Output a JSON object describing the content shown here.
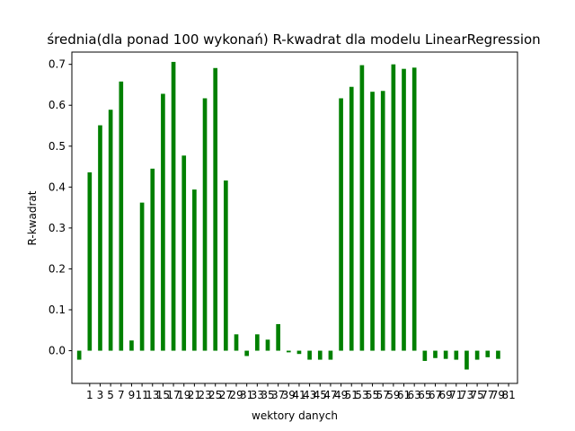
{
  "chart_data": {
    "type": "bar",
    "title": "średnia(dla ponad 100 wykonań) R-kwadrat dla modelu LinearRegression",
    "xlabel": "wektory danych",
    "ylabel": "R-kwadrat",
    "ylim": [
      -0.08,
      0.73
    ],
    "yticks": [
      0.0,
      0.1,
      0.2,
      0.3,
      0.4,
      0.5,
      0.6,
      0.7
    ],
    "ytick_labels": [
      "0.0",
      "0.1",
      "0.2",
      "0.3",
      "0.4",
      "0.5",
      "0.6",
      "0.7"
    ],
    "xlim": [
      -2.4,
      82.7
    ],
    "xticks": [
      1,
      3,
      5,
      7,
      9,
      11,
      13,
      15,
      17,
      19,
      21,
      23,
      25,
      27,
      29,
      31,
      33,
      35,
      37,
      39,
      41,
      43,
      45,
      47,
      49,
      51,
      53,
      55,
      57,
      59,
      61,
      63,
      65,
      67,
      69,
      71,
      73,
      75,
      77,
      79,
      81
    ],
    "xtick_labels": [
      "1",
      "3",
      "5",
      "7",
      "9",
      "11",
      "13",
      "15",
      "17",
      "19",
      "21",
      "23",
      "25",
      "27",
      "29",
      "31",
      "33",
      "35",
      "37",
      "39",
      "41",
      "43",
      "45",
      "47",
      "49",
      "51",
      "53",
      "55",
      "57",
      "59",
      "61",
      "63",
      "65",
      "67",
      "69",
      "71",
      "73",
      "75",
      "77",
      "79",
      "81"
    ],
    "bar_color": "#008000",
    "grid": false,
    "series": [
      {
        "x": [
          -1,
          1,
          3,
          5,
          7,
          9,
          11,
          13,
          15,
          17,
          19,
          21,
          23,
          25,
          27,
          29,
          31,
          33,
          35,
          37,
          39,
          41,
          43,
          45,
          47,
          49,
          51,
          53,
          55,
          57,
          59,
          61,
          63,
          65,
          67,
          69,
          71,
          73,
          75,
          77,
          79
        ],
        "values": [
          -0.022,
          0.436,
          0.551,
          0.589,
          0.658,
          0.025,
          0.362,
          0.445,
          0.628,
          0.706,
          0.477,
          0.394,
          0.617,
          0.691,
          0.416,
          0.04,
          -0.013,
          0.04,
          0.027,
          0.065,
          -0.004,
          -0.008,
          -0.022,
          -0.022,
          -0.022,
          0.617,
          0.645,
          0.698,
          0.633,
          0.635,
          0.7,
          0.689,
          0.692,
          -0.025,
          -0.018,
          -0.02,
          -0.022,
          -0.046,
          -0.022,
          -0.016,
          -0.02
        ]
      }
    ]
  }
}
